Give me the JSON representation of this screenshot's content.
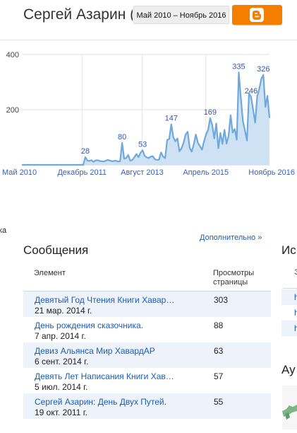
{
  "header": {
    "blog_title": "Сергей Азарин (Э",
    "date_range": "Май 2010 – Ноябрь 2016",
    "blogger_icon": "blogger-logo-icon",
    "brand_color": "#f57d00"
  },
  "chart_data": {
    "type": "area",
    "title": "",
    "xlabel": "",
    "ylabel": "",
    "ylim": [
      0,
      400
    ],
    "yticks": [
      200,
      400
    ],
    "grid": true,
    "line_color": "#6fa8dc",
    "fill_color": "#cfe2f3",
    "x_ticks": [
      "Май 2010",
      "Декабрь 2011",
      "Август 2013",
      "Апрель 2015",
      "Ноябрь 2016"
    ],
    "series": [
      {
        "values": [
          0,
          0,
          0,
          0,
          0,
          0,
          0,
          0,
          0,
          0,
          0,
          0,
          0,
          0,
          0,
          0,
          0,
          0,
          0,
          0,
          0,
          0,
          0,
          0,
          0,
          0,
          0,
          0,
          0,
          0,
          0,
          28,
          16,
          14,
          17,
          11,
          16,
          17,
          14,
          13,
          12,
          15,
          18,
          16,
          13,
          14,
          15,
          12,
          13,
          80,
          22,
          25,
          36,
          15,
          18,
          28,
          39,
          28,
          44,
          53,
          33,
          27,
          25,
          30,
          31,
          20,
          18,
          19,
          45,
          30,
          25,
          90,
          94,
          147,
          100,
          85,
          96,
          49,
          60,
          80,
          110,
          120,
          62,
          48,
          75,
          110,
          80,
          68,
          55,
          85,
          110,
          127,
          169,
          145,
          96,
          150,
          60,
          116,
          76,
          127,
          77,
          105,
          180,
          117,
          130,
          91,
          335,
          243,
          159,
          125,
          88,
          260,
          246,
          200,
          153,
          249,
          275,
          312,
          326,
          210,
          250,
          170
        ]
      }
    ],
    "data_labels": [
      {
        "index": 31,
        "text": "28"
      },
      {
        "index": 49,
        "text": "80"
      },
      {
        "index": 59,
        "text": "53"
      },
      {
        "index": 73,
        "text": "147"
      },
      {
        "index": 92,
        "text": "169"
      },
      {
        "index": 106,
        "text": "335"
      },
      {
        "index": 112,
        "text": "246"
      },
      {
        "index": 118,
        "text": "326"
      }
    ]
  },
  "left_edge_fragment": "ка",
  "posts": {
    "more_link": "Дополнительно »",
    "heading": "Сообщения",
    "col_element": "Элемент",
    "col_views": "Просмотры страницы",
    "rows": [
      {
        "title": "Девятый Год Чтения Книги Хавар…",
        "date": "21 мар. 2014 г.",
        "views": "303"
      },
      {
        "title": "День рождения сказочника.",
        "date": "7 апр. 2014 г.",
        "views": "88"
      },
      {
        "title": "Девиз Альянса Мир ХавардАР",
        "date": "6 сент. 2014 г.",
        "views": "63"
      },
      {
        "title": "Девять Лет Написания Книги Хав…",
        "date": "5 июл. 2014 г.",
        "views": "57"
      },
      {
        "title": "Сергей Азарин: День Двух Путей.",
        "date": "19 окт. 2011 г.",
        "views": "55"
      }
    ]
  },
  "right_column": {
    "heading": "Ис",
    "col_header": "Э",
    "links": [
      "h",
      "h",
      "h"
    ],
    "audience_heading": "Ау"
  }
}
